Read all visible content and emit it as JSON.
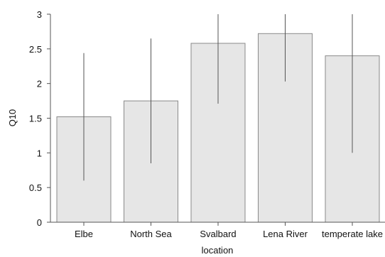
{
  "chart_data": {
    "type": "bar",
    "categories": [
      "Elbe",
      "North Sea",
      "Svalbard",
      "Lena River",
      "temperate lake"
    ],
    "values": [
      1.52,
      1.75,
      2.58,
      2.72,
      2.4
    ],
    "error_low": [
      0.6,
      0.85,
      1.71,
      2.03,
      1.0
    ],
    "error_high": [
      2.44,
      2.65,
      3.0,
      3.0,
      3.0
    ],
    "xlabel": "location",
    "ylabel": "Q10",
    "ylim": [
      0,
      3
    ],
    "yticks": [
      "0",
      "0.5",
      "1",
      "1.5",
      "2",
      "2.5",
      "3"
    ],
    "grid": false,
    "bar_fill": "#e6e6e6",
    "bar_stroke": "#8a8a8a"
  }
}
